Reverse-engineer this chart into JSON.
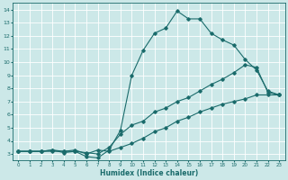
{
  "xlabel": "Humidex (Indice chaleur)",
  "bg_color": "#cce8e8",
  "grid_color": "#ffffff",
  "line_color": "#1a6b6b",
  "xlim": [
    -0.5,
    23.5
  ],
  "ylim": [
    2.5,
    14.5
  ],
  "yticks": [
    3,
    4,
    5,
    6,
    7,
    8,
    9,
    10,
    11,
    12,
    13,
    14
  ],
  "xticks": [
    0,
    1,
    2,
    3,
    4,
    5,
    6,
    7,
    8,
    9,
    10,
    11,
    12,
    13,
    14,
    15,
    16,
    17,
    18,
    19,
    20,
    21,
    22,
    23
  ],
  "line1_x": [
    0,
    1,
    2,
    3,
    4,
    5,
    6,
    7,
    8,
    9,
    10,
    11,
    12,
    13,
    14,
    15,
    16,
    17,
    18,
    19,
    20,
    21,
    22,
    23
  ],
  "line1_y": [
    3.2,
    3.2,
    3.2,
    3.3,
    3.1,
    3.2,
    2.8,
    2.7,
    3.3,
    4.8,
    9.0,
    10.9,
    12.2,
    12.6,
    13.9,
    13.3,
    13.3,
    12.2,
    11.7,
    11.3,
    10.2,
    9.4,
    7.8,
    7.5
  ],
  "line2_x": [
    0,
    1,
    2,
    3,
    4,
    5,
    6,
    7,
    8,
    9,
    10,
    11,
    12,
    13,
    14,
    15,
    16,
    17,
    18,
    19,
    20,
    21,
    22,
    23
  ],
  "line2_y": [
    3.2,
    3.2,
    3.2,
    3.2,
    3.2,
    3.2,
    3.1,
    3.0,
    3.5,
    4.5,
    5.2,
    5.5,
    6.2,
    6.5,
    7.0,
    7.3,
    7.8,
    8.3,
    8.7,
    9.2,
    9.8,
    9.6,
    7.7,
    7.5
  ],
  "line3_x": [
    0,
    1,
    2,
    3,
    4,
    5,
    6,
    7,
    8,
    9,
    10,
    11,
    12,
    13,
    14,
    15,
    16,
    17,
    18,
    19,
    20,
    21,
    22,
    23
  ],
  "line3_y": [
    3.2,
    3.2,
    3.2,
    3.3,
    3.2,
    3.3,
    3.0,
    3.3,
    3.2,
    3.5,
    3.8,
    4.2,
    4.7,
    5.0,
    5.5,
    5.8,
    6.2,
    6.5,
    6.8,
    7.0,
    7.2,
    7.5,
    7.5,
    7.5
  ]
}
